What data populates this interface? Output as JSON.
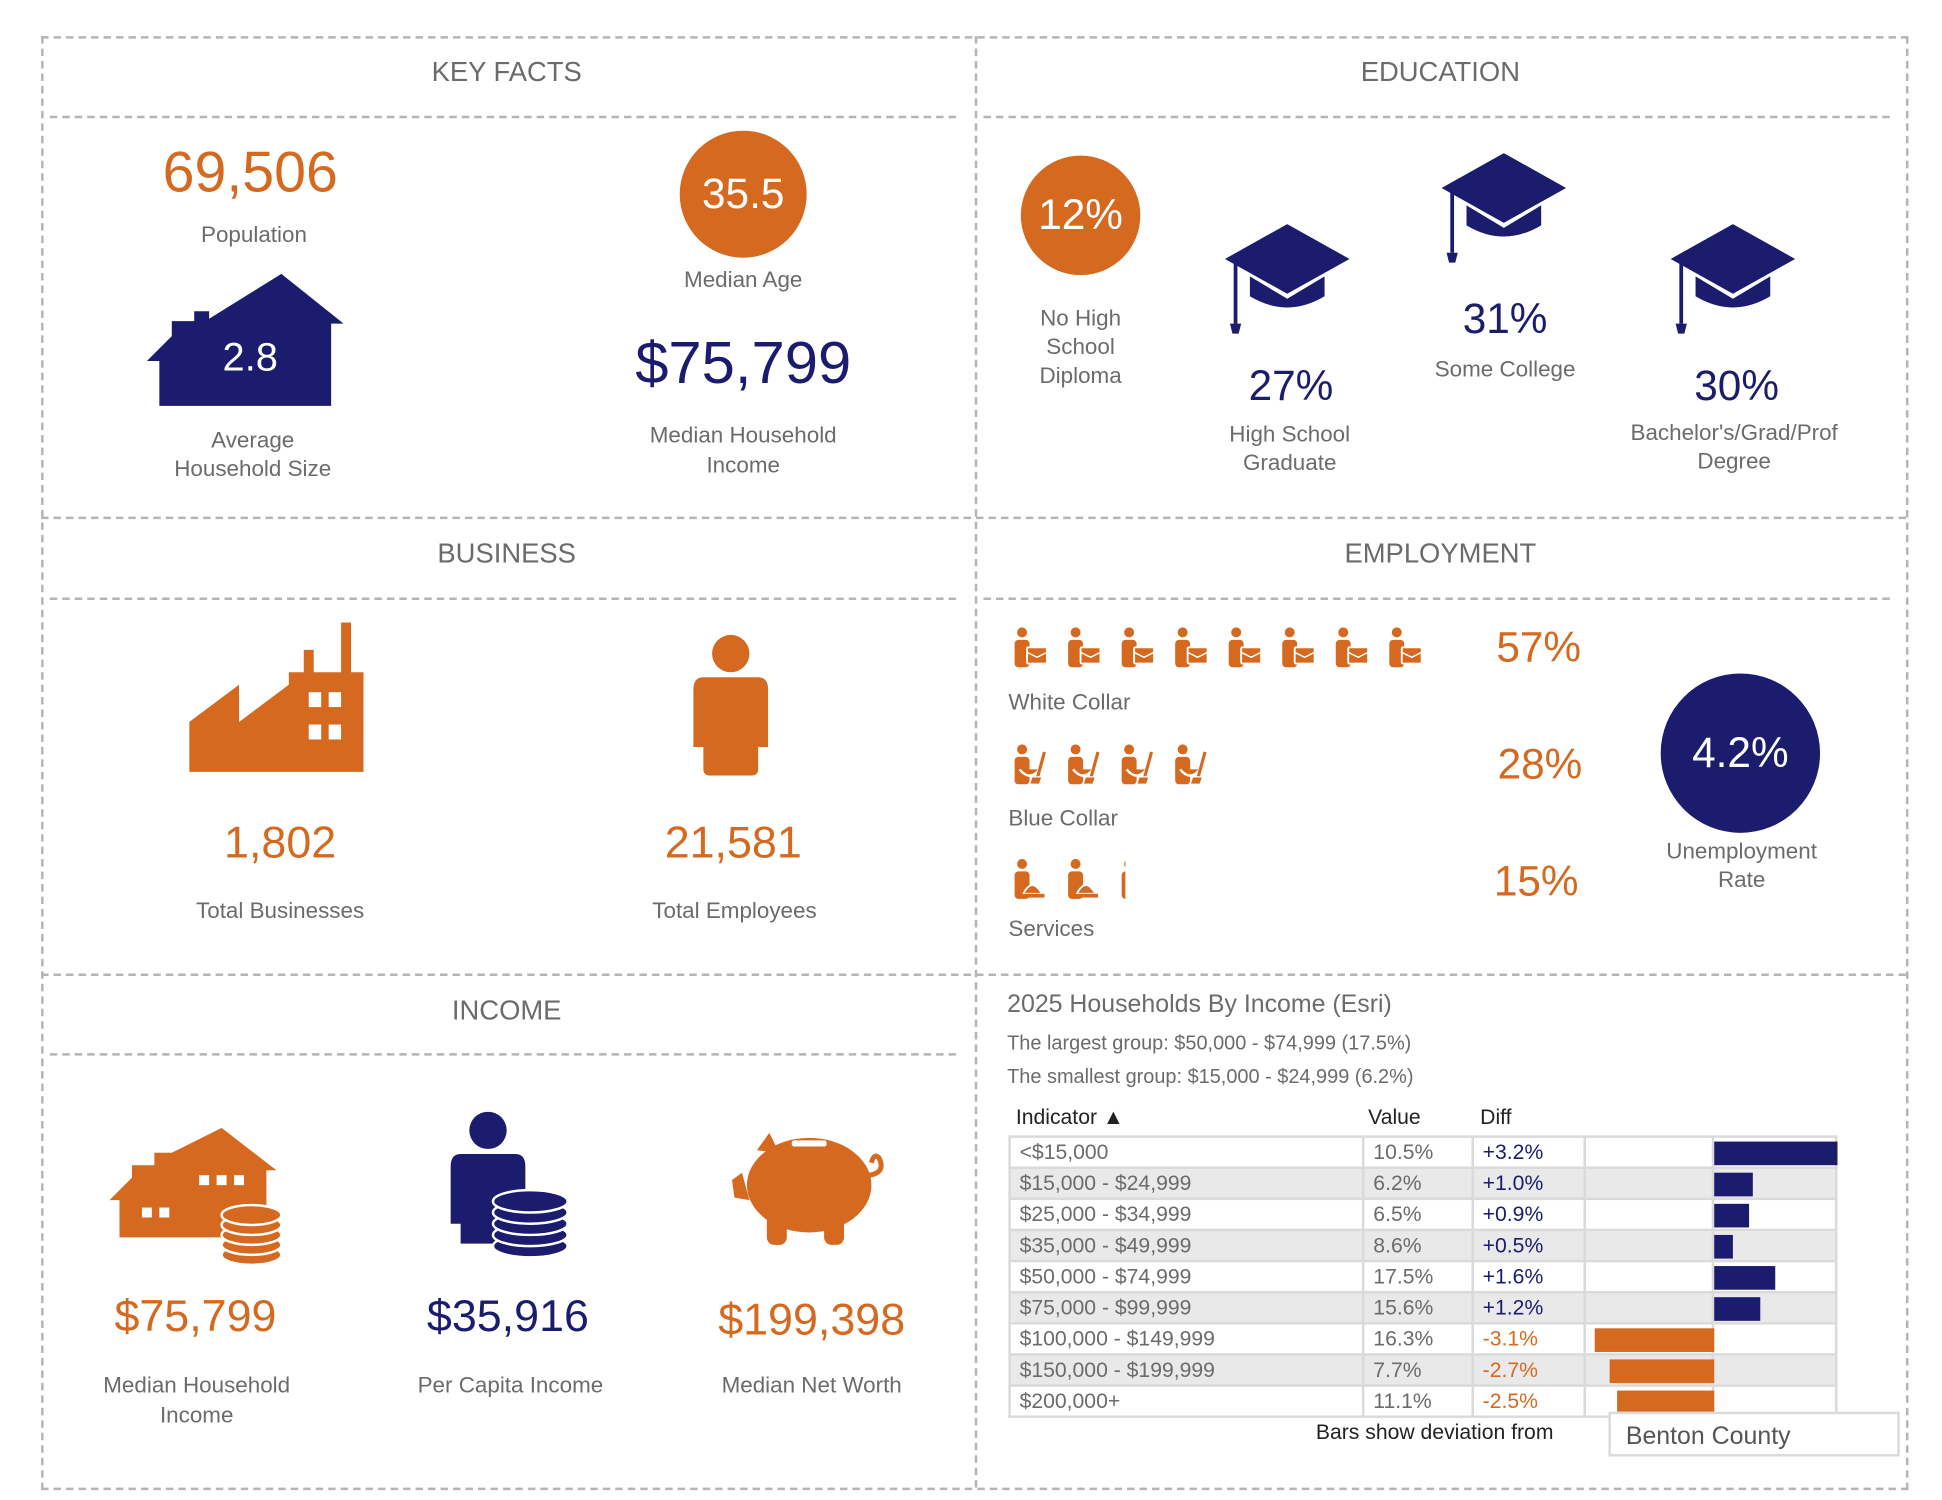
{
  "colors": {
    "orange": "#d4691f",
    "navy": "#1c1c6e",
    "text": "#6b6b6b"
  },
  "key_facts": {
    "title": "KEY FACTS",
    "population": "69,506",
    "population_label": "Population",
    "household_size": "2.8",
    "household_size_label_1": "Average",
    "household_size_label_2": "Household Size",
    "median_age": "35.5",
    "median_age_label": "Median Age",
    "median_income": "$75,799",
    "median_income_label_1": "Median Household",
    "median_income_label_2": "Income"
  },
  "education": {
    "title": "EDUCATION",
    "no_hs": "12%",
    "no_hs_label": [
      "No High",
      "School",
      "Diploma"
    ],
    "hs": "27%",
    "hs_label": [
      "High School",
      "Graduate"
    ],
    "some_college": "31%",
    "some_college_label": "Some College",
    "bachelors": "30%",
    "bachelors_label": [
      "Bachelor's/Grad/Prof",
      "Degree"
    ]
  },
  "business": {
    "title": "BUSINESS",
    "total_businesses": "1,802",
    "total_businesses_label": "Total Businesses",
    "total_employees": "21,581",
    "total_employees_label": "Total Employees"
  },
  "employment": {
    "title": "EMPLOYMENT",
    "white_collar": "57%",
    "white_collar_label": "White Collar",
    "white_collar_icons": 8,
    "blue_collar": "28%",
    "blue_collar_label": "Blue Collar",
    "blue_collar_icons": 4,
    "services": "15%",
    "services_label": "Services",
    "services_icons": 2.5,
    "unemployment": "4.2%",
    "unemployment_label_1": "Unemployment",
    "unemployment_label_2": "Rate"
  },
  "income": {
    "title": "INCOME",
    "median_household": "$75,799",
    "median_household_label_1": "Median Household",
    "median_household_label_2": "Income",
    "per_capita": "$35,916",
    "per_capita_label": "Per Capita Income",
    "net_worth": "$199,398",
    "net_worth_label": "Median Net Worth"
  },
  "households": {
    "title": "2025 Households By Income (Esri)",
    "largest": "The largest group: $50,000 - $74,999 (17.5%)",
    "smallest": "The smallest group: $15,000 - $24,999 (6.2%)",
    "col_indicator": "Indicator ▲",
    "col_value": "Value",
    "col_diff": "Diff",
    "footer": "Bars show deviation from",
    "compare_area": "Benton County",
    "rows": [
      {
        "indicator": "<$15,000",
        "value": "10.5%",
        "diff": "+3.2%",
        "d": 3.2
      },
      {
        "indicator": "$15,000 - $24,999",
        "value": "6.2%",
        "diff": "+1.0%",
        "d": 1.0
      },
      {
        "indicator": "$25,000 - $34,999",
        "value": "6.5%",
        "diff": "+0.9%",
        "d": 0.9
      },
      {
        "indicator": "$35,000 - $49,999",
        "value": "8.6%",
        "diff": "+0.5%",
        "d": 0.5
      },
      {
        "indicator": "$50,000 - $74,999",
        "value": "17.5%",
        "diff": "+1.6%",
        "d": 1.6
      },
      {
        "indicator": "$75,000 - $99,999",
        "value": "15.6%",
        "diff": "+1.2%",
        "d": 1.2
      },
      {
        "indicator": "$100,000 - $149,999",
        "value": "16.3%",
        "diff": "-3.1%",
        "d": -3.1
      },
      {
        "indicator": "$150,000 - $199,999",
        "value": "7.7%",
        "diff": "-2.7%",
        "d": -2.7
      },
      {
        "indicator": "$200,000+",
        "value": "11.1%",
        "diff": "-2.5%",
        "d": -2.5
      }
    ]
  }
}
